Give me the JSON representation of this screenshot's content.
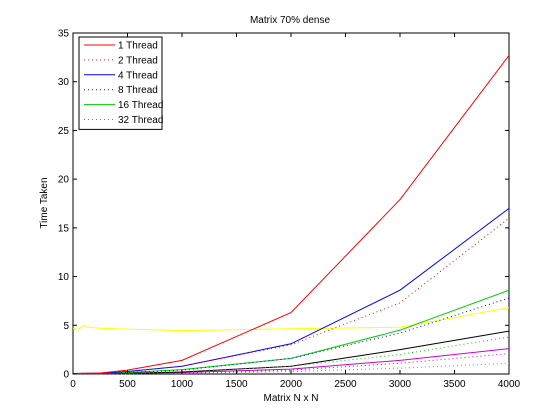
{
  "chart_data": {
    "type": "line",
    "title": "Matrix 70% dense",
    "xlabel": "Matrix N x N",
    "ylabel": "Time Taken",
    "xlim": [
      0,
      4000
    ],
    "ylim": [
      0,
      35
    ],
    "xticks": [
      0,
      500,
      1000,
      1500,
      2000,
      2500,
      3000,
      3500,
      4000
    ],
    "yticks": [
      0,
      5,
      10,
      15,
      20,
      25,
      30,
      35
    ],
    "grid": false,
    "legend_position": "top-left",
    "series": [
      {
        "name": "1 Thread",
        "color": "#ff0000",
        "style": "solid",
        "x": [
          0,
          250,
          500,
          1000,
          2000,
          3000,
          4000
        ],
        "y": [
          0.05,
          0.1,
          0.4,
          1.4,
          6.3,
          17.9,
          32.7
        ]
      },
      {
        "name": "2 Thread",
        "color": "#ff0000",
        "style": "dotted",
        "x": [
          0,
          250,
          500,
          1000,
          2000,
          3000,
          4000
        ],
        "y": [
          0.05,
          0.08,
          0.25,
          0.8,
          3.0,
          7.3,
          16.0
        ]
      },
      {
        "name": "4 Thread",
        "color": "#0000ff",
        "style": "solid",
        "x": [
          0,
          250,
          500,
          1000,
          2000,
          3000,
          4000
        ],
        "y": [
          0.05,
          0.08,
          0.25,
          0.8,
          3.1,
          8.6,
          17.0
        ]
      },
      {
        "name": "8 Thread",
        "color": "#0000ff",
        "style": "dotted",
        "x": [
          0,
          250,
          500,
          1000,
          2000,
          3000,
          4000
        ],
        "y": [
          0.05,
          0.06,
          0.15,
          0.4,
          1.6,
          4.2,
          7.8
        ]
      },
      {
        "name": "16 Thread",
        "color": "#00cc00",
        "style": "solid",
        "x": [
          0,
          250,
          500,
          1000,
          2000,
          3000,
          4000
        ],
        "y": [
          0.05,
          0.06,
          0.15,
          0.45,
          1.6,
          4.5,
          8.6
        ]
      },
      {
        "name": "32 Thread",
        "color": "#00cc00",
        "style": "dotted",
        "x": [
          0,
          250,
          500,
          1000,
          2000,
          3000,
          4000
        ],
        "y": [
          0.03,
          0.04,
          0.1,
          0.25,
          0.8,
          2.0,
          3.8
        ]
      },
      {
        "name": "",
        "color": "#ffff00",
        "style": "solid",
        "x": [
          0,
          50,
          100,
          150,
          250,
          500,
          1000,
          2000,
          3000,
          4000
        ],
        "y": [
          4.7,
          4.6,
          5.0,
          4.8,
          4.7,
          4.6,
          4.45,
          4.65,
          4.8,
          6.8
        ]
      },
      {
        "name": "",
        "color": "#000000",
        "style": "solid",
        "x": [
          0,
          250,
          500,
          1000,
          2000,
          3000,
          4000
        ],
        "y": [
          0.03,
          0.04,
          0.08,
          0.2,
          0.8,
          2.5,
          4.4
        ]
      },
      {
        "name": "",
        "color": "#cc00cc",
        "style": "solid",
        "x": [
          0,
          250,
          500,
          1000,
          2000,
          3000,
          4000
        ],
        "y": [
          0.02,
          0.03,
          0.06,
          0.15,
          0.5,
          1.4,
          2.6
        ]
      },
      {
        "name": "",
        "color": "#cc00cc",
        "style": "dotted",
        "x": [
          0,
          250,
          500,
          1000,
          2000,
          3000,
          4000
        ],
        "y": [
          0.02,
          0.03,
          0.05,
          0.12,
          0.4,
          1.1,
          2.1
        ]
      },
      {
        "name": "",
        "color": "#00cccc",
        "style": "dotted",
        "x": [
          0,
          250,
          500,
          1000,
          2000,
          3000,
          4000
        ],
        "y": [
          0.01,
          0.02,
          0.03,
          0.08,
          0.25,
          0.6,
          1.1
        ]
      }
    ]
  }
}
